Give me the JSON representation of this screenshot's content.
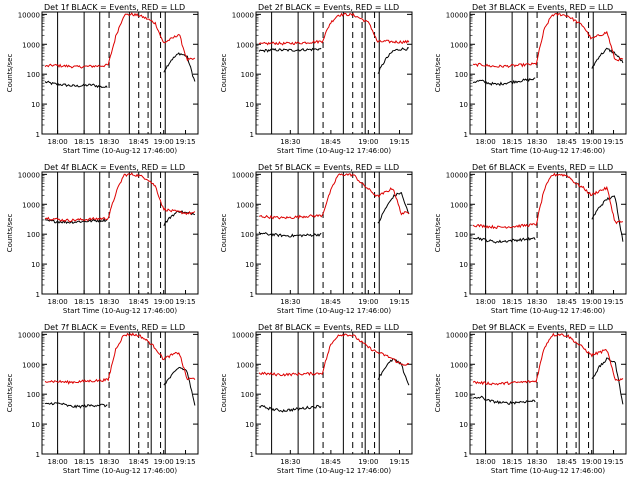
{
  "legend_text": "BLACK = Events, RED = LLD",
  "ylabel": "Counts/sec",
  "xlabel": "Start Time (10-Aug-12 17:46:00)",
  "colors": {
    "events": "#000000",
    "lld": "#dd0000",
    "axis": "#000000"
  },
  "chart_data": [
    {
      "type": "line",
      "title": "Det 1f",
      "yscale": "log",
      "ylim": [
        1,
        12000
      ],
      "x_ticks": [
        "18:00",
        "18:15",
        "18:30",
        "18:45",
        "19:00",
        "19:15"
      ],
      "series": [
        {
          "name": "BLACK = Events",
          "values": [
            55,
            48,
            45,
            42,
            40,
            42,
            44,
            38,
            36,
            0,
            0,
            0,
            0,
            0,
            0,
            120,
            300,
            500,
            400,
            55
          ]
        },
        {
          "name": "RED = LLD",
          "values": [
            180,
            200,
            190,
            185,
            175,
            180,
            185,
            190,
            200,
            2000,
            9500,
            10000,
            9000,
            7000,
            5000,
            1100,
            1500,
            2200,
            300,
            320
          ]
        }
      ]
    },
    {
      "type": "line",
      "title": "Det 2f",
      "yscale": "log",
      "ylim": [
        1,
        12000
      ],
      "x_ticks": [
        "18:30",
        "18:45",
        "19:00",
        "19:15"
      ],
      "series": [
        {
          "name": "BLACK = Events",
          "values": [
            600,
            620,
            650,
            640,
            630,
            650,
            660,
            680,
            700,
            0,
            0,
            0,
            0,
            0,
            0,
            100,
            300,
            600,
            700,
            700
          ]
        },
        {
          "name": "RED = LLD",
          "values": [
            1000,
            1050,
            1100,
            1050,
            1080,
            1100,
            1150,
            1200,
            1250,
            5000,
            9500,
            10000,
            9500,
            7000,
            5000,
            1200,
            1250,
            1200,
            1200,
            1200
          ]
        }
      ]
    },
    {
      "type": "line",
      "title": "Det 3f",
      "yscale": "log",
      "ylim": [
        1,
        12000
      ],
      "x_ticks": [
        "18:00",
        "18:15",
        "18:30",
        "18:45",
        "19:00",
        "19:15"
      ],
      "series": [
        {
          "name": "BLACK = Events",
          "values": [
            55,
            60,
            50,
            45,
            50,
            55,
            60,
            65,
            70,
            0,
            0,
            0,
            0,
            0,
            0,
            150,
            400,
            700,
            500,
            250
          ]
        },
        {
          "name": "RED = LLD",
          "values": [
            200,
            210,
            190,
            180,
            185,
            190,
            200,
            210,
            220,
            3000,
            9500,
            10000,
            9000,
            6000,
            4000,
            1500,
            2000,
            2500,
            300,
            320
          ]
        }
      ]
    },
    {
      "type": "line",
      "title": "Det 4f",
      "yscale": "log",
      "ylim": [
        1,
        12000
      ],
      "x_ticks": [
        "18:00",
        "18:15",
        "18:30",
        "18:45",
        "19:00",
        "19:15"
      ],
      "series": [
        {
          "name": "BLACK = Events",
          "values": [
            280,
            270,
            260,
            250,
            260,
            270,
            280,
            290,
            300,
            0,
            0,
            0,
            0,
            0,
            0,
            200,
            400,
            600,
            500,
            500
          ]
        },
        {
          "name": "RED = LLD",
          "values": [
            350,
            330,
            300,
            290,
            300,
            310,
            320,
            330,
            340,
            2500,
            9500,
            10000,
            9000,
            7000,
            4000,
            700,
            600,
            550,
            500,
            520
          ]
        }
      ]
    },
    {
      "type": "line",
      "title": "Det 5f",
      "yscale": "log",
      "ylim": [
        1,
        12000
      ],
      "x_ticks": [
        "18:30",
        "18:45",
        "19:00",
        "19:15"
      ],
      "series": [
        {
          "name": "BLACK = Events",
          "values": [
            110,
            100,
            95,
            90,
            88,
            90,
            92,
            95,
            100,
            0,
            0,
            0,
            0,
            0,
            0,
            200,
            700,
            1800,
            2500,
            450
          ]
        },
        {
          "name": "RED = LLD",
          "values": [
            400,
            380,
            360,
            350,
            360,
            380,
            400,
            410,
            420,
            2500,
            9500,
            10000,
            9500,
            5000,
            3000,
            1800,
            2500,
            3500,
            500,
            520
          ]
        }
      ]
    },
    {
      "type": "line",
      "title": "Det 6f",
      "yscale": "log",
      "ylim": [
        1,
        12000
      ],
      "x_ticks": [
        "18:00",
        "18:15",
        "18:30",
        "18:45",
        "19:00",
        "19:15"
      ],
      "series": [
        {
          "name": "BLACK = Events",
          "values": [
            80,
            70,
            60,
            55,
            58,
            62,
            65,
            68,
            70,
            0,
            0,
            0,
            0,
            0,
            0,
            300,
            800,
            1500,
            1800,
            60
          ]
        },
        {
          "name": "RED = LLD",
          "values": [
            200,
            190,
            180,
            170,
            175,
            180,
            190,
            200,
            210,
            3000,
            9500,
            10000,
            9000,
            5000,
            3500,
            2000,
            2800,
            3500,
            250,
            260
          ]
        }
      ]
    },
    {
      "type": "line",
      "title": "Det 7f",
      "yscale": "log",
      "ylim": [
        1,
        12000
      ],
      "x_ticks": [
        "18:00",
        "18:15",
        "18:30",
        "18:45",
        "19:00",
        "19:15"
      ],
      "series": [
        {
          "name": "BLACK = Events",
          "values": [
            45,
            50,
            48,
            40,
            38,
            40,
            42,
            44,
            40,
            0,
            0,
            0,
            0,
            0,
            0,
            200,
            400,
            800,
            600,
            40
          ]
        },
        {
          "name": "RED = LLD",
          "values": [
            280,
            270,
            260,
            250,
            260,
            270,
            280,
            290,
            300,
            3500,
            9500,
            10000,
            9000,
            6000,
            3500,
            1500,
            2000,
            2500,
            320,
            330
          ]
        }
      ]
    },
    {
      "type": "line",
      "title": "Det 8f",
      "yscale": "log",
      "ylim": [
        1,
        12000
      ],
      "x_ticks": [
        "18:30",
        "18:45",
        "19:00",
        "19:15"
      ],
      "series": [
        {
          "name": "BLACK = Events",
          "values": [
            40,
            35,
            30,
            28,
            30,
            32,
            35,
            38,
            40,
            0,
            0,
            0,
            0,
            0,
            0,
            300,
            800,
            1500,
            1000,
            200
          ]
        },
        {
          "name": "RED = LLD",
          "values": [
            500,
            480,
            460,
            450,
            460,
            470,
            480,
            490,
            500,
            4000,
            9500,
            10000,
            9000,
            5500,
            3500,
            2500,
            2000,
            1500,
            1000,
            1000
          ]
        }
      ]
    },
    {
      "type": "line",
      "title": "Det 9f",
      "yscale": "log",
      "ylim": [
        1,
        12000
      ],
      "x_ticks": [
        "18:00",
        "18:15",
        "18:30",
        "18:45",
        "19:00",
        "19:15"
      ],
      "series": [
        {
          "name": "BLACK = Events",
          "values": [
            70,
            80,
            60,
            55,
            50,
            52,
            55,
            58,
            60,
            0,
            0,
            0,
            0,
            0,
            0,
            300,
            800,
            1500,
            1200,
            50
          ]
        },
        {
          "name": "RED = LLD",
          "values": [
            250,
            240,
            230,
            220,
            230,
            240,
            250,
            260,
            270,
            3500,
            9500,
            10000,
            9000,
            5500,
            3500,
            2000,
            2500,
            3000,
            300,
            320
          ]
        }
      ]
    }
  ]
}
